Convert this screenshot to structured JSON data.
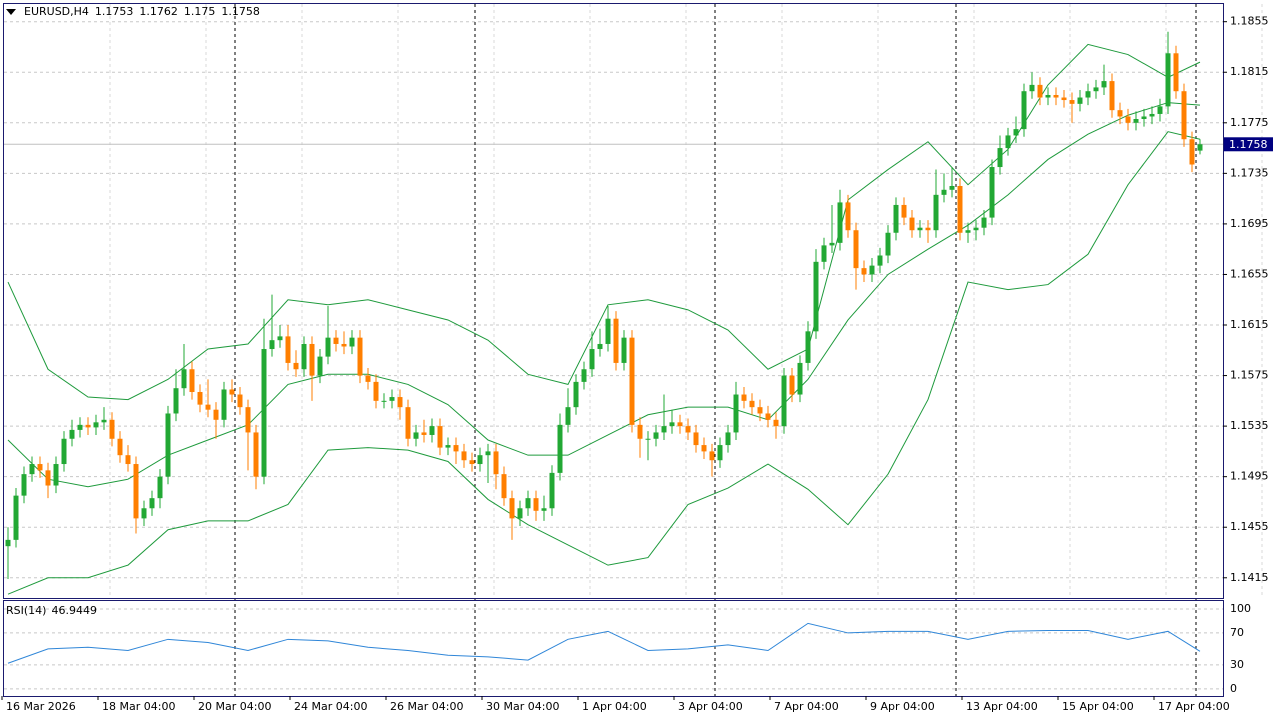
{
  "chart_data": {
    "type": "candlestick",
    "symbol": "EURUSD,H4",
    "header_values": [
      1.1753,
      1.1762,
      1.175,
      1.1758
    ],
    "current_price": 1.1758,
    "up_color": "#22a834",
    "down_color": "#ff7f00",
    "ylim": [
      1.1399,
      1.1869
    ],
    "yticks": [
      1.1855,
      1.1815,
      1.1775,
      1.1735,
      1.1695,
      1.1655,
      1.1615,
      1.1575,
      1.1535,
      1.1495,
      1.1455,
      1.1415
    ],
    "grid": true,
    "xticks": [
      {
        "value": 0,
        "label": "16 Mar 2026"
      },
      {
        "value": 12,
        "label": "18 Mar 04:00"
      },
      {
        "value": 24,
        "label": "20 Mar 04:00"
      },
      {
        "value": 36,
        "label": "24 Mar 04:00"
      },
      {
        "value": 48,
        "label": "26 Mar 04:00"
      },
      {
        "value": 60,
        "label": "30 Mar 04:00"
      },
      {
        "value": 72,
        "label": "1 Apr 04:00"
      },
      {
        "value": 84,
        "label": "3 Apr 04:00"
      },
      {
        "value": 96,
        "label": "7 Apr 04:00"
      },
      {
        "value": 108,
        "label": "9 Apr 04:00"
      },
      {
        "value": 120,
        "label": "13 Apr 04:00"
      },
      {
        "value": 132,
        "label": "15 Apr 04:00"
      },
      {
        "value": 144,
        "label": "17 Apr 04:00"
      }
    ],
    "open": [
      1.144,
      1.1445,
      1.148,
      1.1497,
      1.1505,
      1.15,
      1.1488,
      1.1505,
      1.1525,
      1.1532,
      1.1536,
      1.1534,
      1.1538,
      1.154,
      1.1525,
      1.1512,
      1.1505,
      1.1462,
      1.147,
      1.1478,
      1.1495,
      1.1545,
      1.1565,
      1.158,
      1.1562,
      1.1552,
      1.1548,
      1.154,
      1.1564,
      1.156,
      1.155,
      1.153,
      1.1495,
      1.1596,
      1.1603,
      1.1606,
      1.1585,
      1.158,
      1.16,
      1.1575,
      1.159,
      1.1605,
      1.16,
      1.1598,
      1.1605,
      1.1575,
      1.157,
      1.1555,
      1.1555,
      1.1558,
      1.155,
      1.1525,
      1.153,
      1.1528,
      1.1535,
      1.1518,
      1.152,
      1.1515,
      1.1508,
      1.1505,
      1.1512,
      1.1515,
      1.1497,
      1.1478,
      1.1462,
      1.147,
      1.1478,
      1.1468,
      1.147,
      1.1498,
      1.1536,
      1.155,
      1.157,
      1.158,
      1.1596,
      1.16,
      1.162,
      1.1585,
      1.1605,
      1.1536,
      1.1525,
      1.1525,
      1.153,
      1.1535,
      1.1538,
      1.1535,
      1.153,
      1.152,
      1.1515,
      1.1508,
      1.152,
      1.153,
      1.156,
      1.1555,
      1.155,
      1.1545,
      1.154,
      1.1535,
      1.1575,
      1.156,
      1.1585,
      1.161,
      1.1665,
      1.1678,
      1.168,
      1.1712,
      1.169,
      1.166,
      1.1655,
      1.1662,
      1.167,
      1.1688,
      1.171,
      1.17,
      1.169,
      1.1692,
      1.169,
      1.1718,
      1.1722,
      1.1725,
      1.1688,
      1.169,
      1.1692,
      1.17,
      1.174,
      1.1755,
      1.1765,
      1.177,
      1.18,
      1.1805,
      1.1795,
      1.1797,
      1.1795,
      1.1793,
      1.179,
      1.1795,
      1.18,
      1.1803,
      1.1808,
      1.1785,
      1.178,
      1.1775,
      1.1778,
      1.178,
      1.1782,
      1.1788,
      1.183,
      1.18,
      1.1762,
      1.1753
    ],
    "high": [
      1.1455,
      1.1486,
      1.1503,
      1.1511,
      1.1511,
      1.1506,
      1.1511,
      1.1531,
      1.154,
      1.1542,
      1.1542,
      1.1544,
      1.155,
      1.1546,
      1.1531,
      1.152,
      1.1511,
      1.1476,
      1.1484,
      1.1501,
      1.1551,
      1.158,
      1.16,
      1.1586,
      1.1568,
      1.1572,
      1.1554,
      1.157,
      1.1572,
      1.1566,
      1.1556,
      1.1536,
      1.162,
      1.1639,
      1.1615,
      1.1615,
      1.1595,
      1.1606,
      1.1606,
      1.1596,
      1.163,
      1.1611,
      1.161,
      1.1611,
      1.1611,
      1.1581,
      1.1576,
      1.1561,
      1.1564,
      1.1564,
      1.1556,
      1.1536,
      1.154,
      1.1541,
      1.1541,
      1.1526,
      1.1526,
      1.1521,
      1.1514,
      1.1518,
      1.1521,
      1.1521,
      1.1503,
      1.1484,
      1.1476,
      1.1484,
      1.1484,
      1.148,
      1.1504,
      1.1545,
      1.1565,
      1.1576,
      1.1586,
      1.161,
      1.1612,
      1.163,
      1.1626,
      1.1611,
      1.1611,
      1.1542,
      1.1531,
      1.1536,
      1.156,
      1.1548,
      1.1544,
      1.1541,
      1.1536,
      1.1526,
      1.1521,
      1.1526,
      1.1536,
      1.157,
      1.1566,
      1.1561,
      1.1556,
      1.1551,
      1.1546,
      1.1581,
      1.1581,
      1.1591,
      1.1618,
      1.1675,
      1.1684,
      1.171,
      1.1722,
      1.1718,
      1.1696,
      1.1666,
      1.1668,
      1.1676,
      1.1694,
      1.1716,
      1.1716,
      1.1706,
      1.1698,
      1.1698,
      1.1738,
      1.1735,
      1.174,
      1.1731,
      1.1696,
      1.1698,
      1.1706,
      1.1746,
      1.1765,
      1.1771,
      1.178,
      1.1806,
      1.1815,
      1.1811,
      1.1803,
      1.1803,
      1.1801,
      1.1799,
      1.1801,
      1.1806,
      1.1809,
      1.1821,
      1.1814,
      1.1791,
      1.1786,
      1.1784,
      1.1786,
      1.1788,
      1.1794,
      1.1847,
      1.1836,
      1.1806,
      1.1768,
      1.1762
    ],
    "low": [
      1.1414,
      1.1439,
      1.1474,
      1.1491,
      1.1494,
      1.1478,
      1.1482,
      1.1499,
      1.1519,
      1.1526,
      1.1528,
      1.1528,
      1.1532,
      1.1519,
      1.1506,
      1.1499,
      1.145,
      1.1456,
      1.1464,
      1.147,
      1.1489,
      1.1539,
      1.1559,
      1.1556,
      1.1546,
      1.1542,
      1.1525,
      1.1534,
      1.1554,
      1.1544,
      1.15,
      1.1485,
      1.1489,
      1.159,
      1.1597,
      1.1579,
      1.1574,
      1.1574,
      1.1555,
      1.1569,
      1.1584,
      1.1594,
      1.1592,
      1.1592,
      1.1569,
      1.1564,
      1.1549,
      1.1549,
      1.1549,
      1.154,
      1.1519,
      1.1519,
      1.1522,
      1.1522,
      1.1512,
      1.1512,
      1.1505,
      1.1502,
      1.1499,
      1.1499,
      1.149,
      1.1485,
      1.1472,
      1.1445,
      1.1456,
      1.1464,
      1.146,
      1.146,
      1.1464,
      1.1492,
      1.153,
      1.1544,
      1.1564,
      1.1574,
      1.159,
      1.1594,
      1.1579,
      1.1579,
      1.153,
      1.151,
      1.1508,
      1.1519,
      1.1524,
      1.1529,
      1.1529,
      1.1524,
      1.1514,
      1.1509,
      1.1495,
      1.1502,
      1.1514,
      1.1524,
      1.1549,
      1.1544,
      1.1539,
      1.1534,
      1.1525,
      1.1529,
      1.1554,
      1.1554,
      1.1579,
      1.1604,
      1.1659,
      1.1672,
      1.1674,
      1.1684,
      1.1643,
      1.1649,
      1.1649,
      1.1656,
      1.1664,
      1.1682,
      1.1694,
      1.1684,
      1.1684,
      1.168,
      1.1684,
      1.1712,
      1.1716,
      1.1682,
      1.168,
      1.1682,
      1.1686,
      1.1694,
      1.1734,
      1.1749,
      1.1759,
      1.1764,
      1.1794,
      1.1789,
      1.1789,
      1.1789,
      1.1787,
      1.1775,
      1.1784,
      1.1789,
      1.1794,
      1.1797,
      1.1779,
      1.1774,
      1.1769,
      1.1769,
      1.1772,
      1.1774,
      1.1776,
      1.1782,
      1.1794,
      1.1756,
      1.1736,
      1.175
    ],
    "close": [
      1.1445,
      1.148,
      1.1497,
      1.1505,
      1.15,
      1.1488,
      1.1505,
      1.1525,
      1.1532,
      1.1536,
      1.1534,
      1.1538,
      1.154,
      1.1525,
      1.1512,
      1.1505,
      1.1462,
      1.147,
      1.1478,
      1.1495,
      1.1545,
      1.1565,
      1.158,
      1.1562,
      1.1552,
      1.1548,
      1.154,
      1.1564,
      1.156,
      1.155,
      1.153,
      1.1495,
      1.1596,
      1.1603,
      1.1606,
      1.1585,
      1.158,
      1.16,
      1.1575,
      1.159,
      1.1605,
      1.16,
      1.1598,
      1.1605,
      1.1575,
      1.157,
      1.1555,
      1.1555,
      1.1558,
      1.155,
      1.1525,
      1.153,
      1.1528,
      1.1535,
      1.1518,
      1.152,
      1.1515,
      1.1508,
      1.1505,
      1.1512,
      1.1515,
      1.1497,
      1.1478,
      1.1462,
      1.147,
      1.1478,
      1.1468,
      1.147,
      1.1498,
      1.1536,
      1.155,
      1.157,
      1.158,
      1.1596,
      1.16,
      1.162,
      1.1585,
      1.1605,
      1.1536,
      1.1525,
      1.1525,
      1.153,
      1.1535,
      1.1538,
      1.1535,
      1.153,
      1.152,
      1.1515,
      1.1508,
      1.152,
      1.153,
      1.156,
      1.1555,
      1.155,
      1.1545,
      1.154,
      1.1535,
      1.1575,
      1.156,
      1.1585,
      1.161,
      1.1665,
      1.1678,
      1.168,
      1.1712,
      1.169,
      1.166,
      1.1655,
      1.1662,
      1.167,
      1.1688,
      1.171,
      1.17,
      1.169,
      1.1692,
      1.169,
      1.1718,
      1.1722,
      1.1725,
      1.1688,
      1.169,
      1.1692,
      1.17,
      1.174,
      1.1755,
      1.1765,
      1.177,
      1.18,
      1.1805,
      1.1795,
      1.1797,
      1.1795,
      1.1793,
      1.179,
      1.1795,
      1.18,
      1.1803,
      1.1808,
      1.1785,
      1.178,
      1.1775,
      1.1778,
      1.178,
      1.1782,
      1.1788,
      1.183,
      1.18,
      1.1762,
      1.1742,
      1.1758
    ],
    "bollinger": {
      "color": "#1e9a3c",
      "x": [
        0,
        5,
        10,
        15,
        20,
        25,
        30,
        35,
        40,
        45,
        50,
        55,
        60,
        65,
        70,
        75,
        80,
        85,
        90,
        95,
        100,
        105,
        110,
        115,
        120,
        125,
        130,
        135,
        140,
        145,
        149
      ],
      "upper": [
        1.1649,
        1.158,
        1.1558,
        1.1556,
        1.1572,
        1.1596,
        1.16,
        1.1635,
        1.1631,
        1.1635,
        1.1627,
        1.1619,
        1.1603,
        1.1576,
        1.1568,
        1.1631,
        1.1635,
        1.1627,
        1.1611,
        1.158,
        1.1596,
        1.1714,
        1.1738,
        1.176,
        1.1726,
        1.1754,
        1.1805,
        1.1837,
        1.1829,
        1.1811,
        1.1823
      ],
      "middle": [
        1.1524,
        1.1493,
        1.1487,
        1.1493,
        1.1512,
        1.1524,
        1.1536,
        1.1568,
        1.1576,
        1.1576,
        1.1568,
        1.1552,
        1.1524,
        1.1512,
        1.1512,
        1.1528,
        1.1544,
        1.155,
        1.155,
        1.154,
        1.1572,
        1.1619,
        1.1655,
        1.1675,
        1.1694,
        1.1718,
        1.1746,
        1.1766,
        1.1781,
        1.1791,
        1.1789
      ],
      "lower": [
        1.1402,
        1.1415,
        1.1415,
        1.1425,
        1.1453,
        1.146,
        1.146,
        1.1473,
        1.1516,
        1.1518,
        1.1516,
        1.1507,
        1.1477,
        1.1457,
        1.1441,
        1.1425,
        1.1431,
        1.1473,
        1.1486,
        1.1505,
        1.1485,
        1.1457,
        1.1497,
        1.1556,
        1.1649,
        1.1643,
        1.1647,
        1.1671,
        1.1726,
        1.1768,
        1.1762
      ]
    },
    "rsi": {
      "label": "RSI(14)",
      "current": 46.9449,
      "color": "#2f86d8",
      "ylim": [
        -9,
        110
      ],
      "yticks": [
        100,
        70,
        30,
        0
      ],
      "x": [
        0,
        5,
        10,
        15,
        20,
        25,
        30,
        35,
        40,
        45,
        50,
        55,
        60,
        65,
        70,
        75,
        80,
        85,
        90,
        95,
        100,
        105,
        110,
        115,
        120,
        125,
        130,
        135,
        140,
        145,
        149
      ],
      "values": [
        32,
        50,
        52,
        48,
        62,
        58,
        48,
        62,
        60,
        52,
        48,
        42,
        40,
        36,
        62,
        72,
        48,
        50,
        55,
        48,
        82,
        70,
        72,
        72,
        62,
        72,
        73,
        73,
        62,
        72,
        47
      ]
    }
  }
}
